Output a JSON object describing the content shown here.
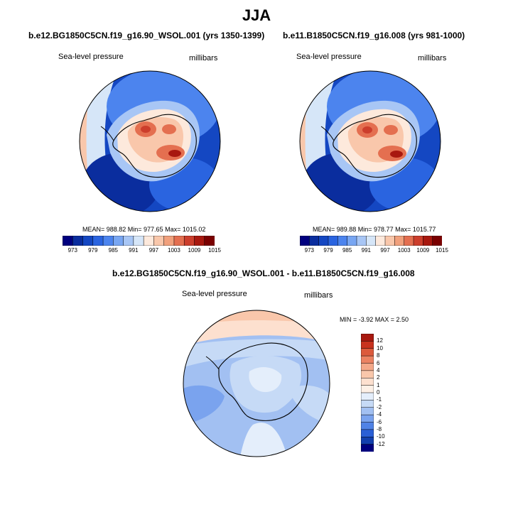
{
  "figure": {
    "title": "JJA"
  },
  "panels": [
    {
      "title": "b.e12.BG1850C5CN.f19_g16.90_WSOL.001 (yrs 1350-1399)",
      "left_label": "Sea-level pressure",
      "right_label": "millibars",
      "stats": "MEAN= 988.82  Min= 977.65  Max= 1015.02",
      "colorbar": {
        "orientation": "horizontal",
        "tick_labels": [
          "973",
          "979",
          "985",
          "991",
          "997",
          "1003",
          "1009",
          "1015"
        ],
        "colors": [
          "#00007f",
          "#0a2d9e",
          "#1447c2",
          "#2a64e0",
          "#4c84ee",
          "#78a6f2",
          "#a8c6f5",
          "#d6e6f8",
          "#fde9dc",
          "#f9c7ab",
          "#f1a07c",
          "#e46f50",
          "#cc3e2c",
          "#a8180f",
          "#7a0000"
        ]
      }
    },
    {
      "title": "b.e11.B1850C5CN.f19_g16.008 (yrs 981-1000)",
      "left_label": "Sea-level pressure",
      "right_label": "millibars",
      "stats": "MEAN= 989.88  Min= 978.77  Max= 1015.77",
      "colorbar": {
        "orientation": "horizontal",
        "tick_labels": [
          "973",
          "979",
          "985",
          "991",
          "997",
          "1003",
          "1009",
          "1015"
        ],
        "colors": [
          "#00007f",
          "#0a2d9e",
          "#1447c2",
          "#2a64e0",
          "#4c84ee",
          "#78a6f2",
          "#a8c6f5",
          "#d6e6f8",
          "#fde9dc",
          "#f9c7ab",
          "#f1a07c",
          "#e46f50",
          "#cc3e2c",
          "#a8180f",
          "#7a0000"
        ]
      }
    },
    {
      "title": "b.e12.BG1850C5CN.f19_g16.90_WSOL.001 - b.e11.B1850C5CN.f19_g16.008",
      "left_label": "Sea-level pressure",
      "right_label": "millibars",
      "stats": "MIN =  -3.92 MAX =   2.50",
      "colorbar": {
        "orientation": "vertical",
        "tick_labels": [
          "12",
          "10",
          "8",
          "6",
          "4",
          "2",
          "1",
          "0",
          "-1",
          "-2",
          "-4",
          "-6",
          "-8",
          "-10",
          "-12"
        ],
        "colors": [
          "#a8180f",
          "#c8321e",
          "#dc5a3c",
          "#eb8262",
          "#f4a889",
          "#f9c7ab",
          "#fde0cf",
          "#fdf0e6",
          "#e4eefb",
          "#c6daf6",
          "#a2c0f2",
          "#7aa3ee",
          "#4f82e6",
          "#2a5fd6",
          "#123fae",
          "#00007f"
        ]
      }
    }
  ]
}
